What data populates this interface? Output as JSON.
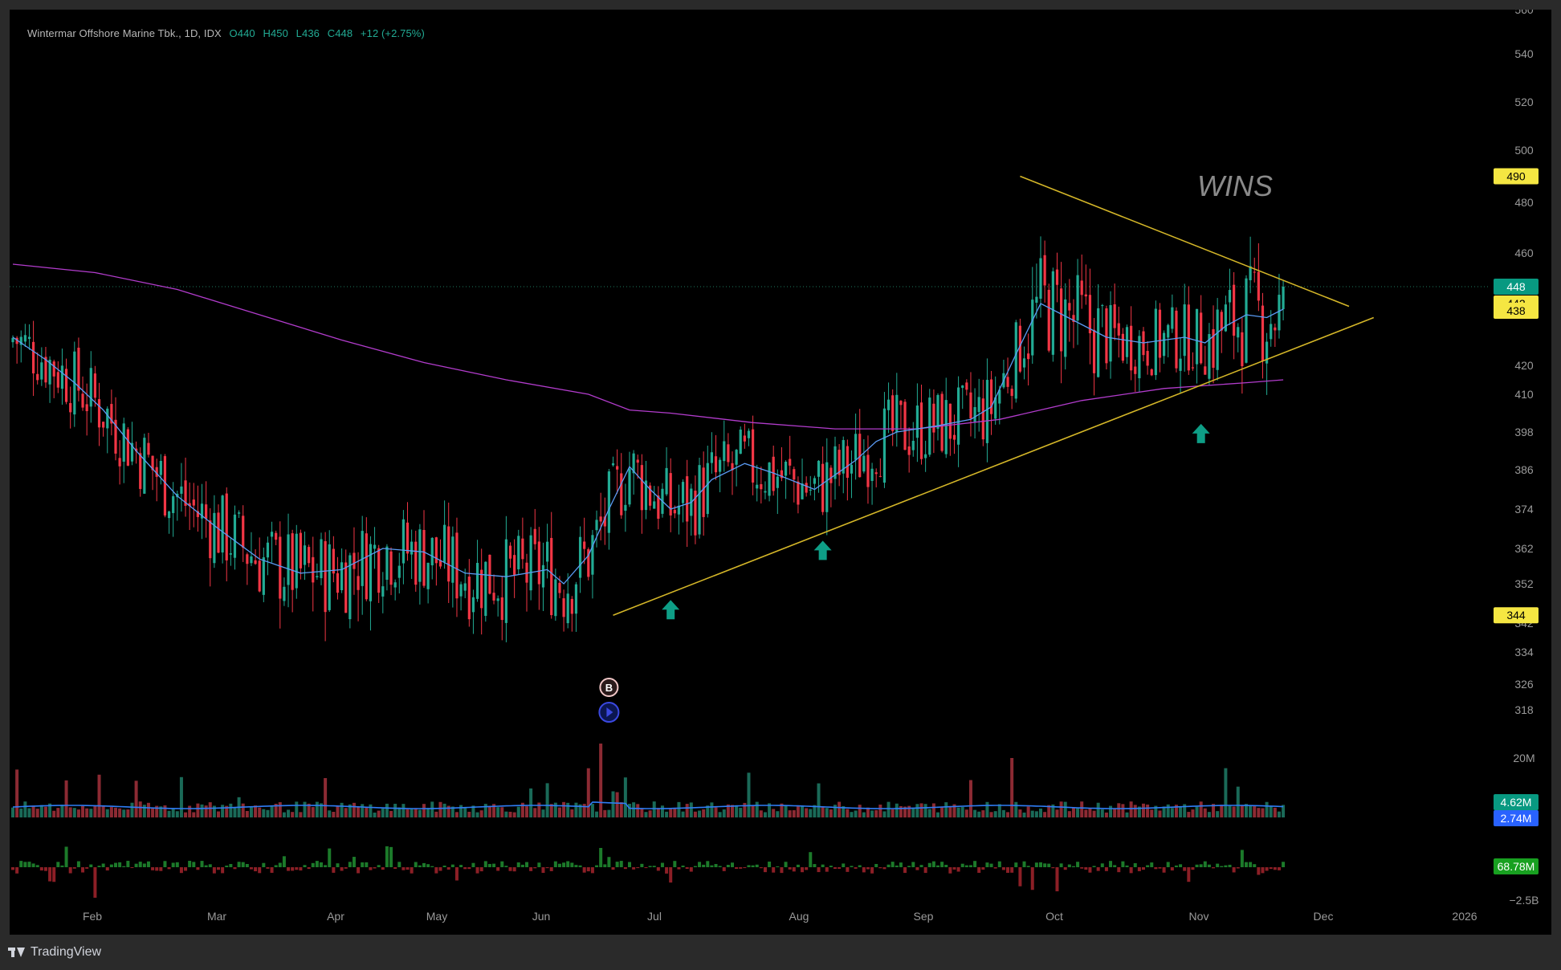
{
  "legend": {
    "symbol": "Wintermar Offshore Marine Tbk., 1D, IDX",
    "open": "O440",
    "high": "H450",
    "low": "L436",
    "close": "C448",
    "change": "+12 (+2.75%)"
  },
  "watermark": "WINS",
  "footer": {
    "brand": "TradingView"
  },
  "colors": {
    "up": "#22ab94",
    "down": "#f23645",
    "ma_fast": "#5b9cf6",
    "ma_slow": "#b23ccc",
    "trendline": "#d4b628",
    "axis_text": "#9a9a9a",
    "highlight": "#f5e642"
  },
  "chart_data": {
    "type": "candlestick",
    "price_axis": {
      "ticks": [
        "560",
        "540",
        "520",
        "500",
        "480",
        "460",
        "420",
        "410",
        "398",
        "386",
        "374",
        "362",
        "352",
        "342",
        "334",
        "326",
        "318"
      ],
      "labels": [
        {
          "text": "490",
          "value": 490,
          "style": "yellow"
        },
        {
          "text": "448",
          "value": 448,
          "style": "green"
        },
        {
          "text": "442",
          "value": 442,
          "style": "yellow"
        },
        {
          "text": "438",
          "value": 438,
          "style": "yellow"
        },
        {
          "text": "344",
          "value": 344,
          "style": "yellow"
        }
      ]
    },
    "time_axis": {
      "ticks": [
        "Feb",
        "Mar",
        "Apr",
        "May",
        "Jun",
        "Jul",
        "Aug",
        "Sep",
        "Oct",
        "Nov",
        "Dec",
        "2026"
      ]
    },
    "last_close": 448,
    "ma_fast_points": [
      [
        0,
        430
      ],
      [
        8,
        422
      ],
      [
        15,
        414
      ],
      [
        22,
        405
      ],
      [
        30,
        392
      ],
      [
        40,
        378
      ],
      [
        50,
        368
      ],
      [
        60,
        359
      ],
      [
        70,
        355
      ],
      [
        80,
        356
      ],
      [
        90,
        362
      ],
      [
        100,
        361
      ],
      [
        110,
        355
      ],
      [
        120,
        354
      ],
      [
        130,
        356
      ],
      [
        134,
        352
      ],
      [
        140,
        360
      ],
      [
        145,
        374
      ],
      [
        150,
        387
      ],
      [
        155,
        380
      ],
      [
        160,
        374
      ],
      [
        165,
        376
      ],
      [
        170,
        383
      ],
      [
        178,
        388
      ],
      [
        185,
        385
      ],
      [
        195,
        380
      ],
      [
        205,
        389
      ],
      [
        210,
        395
      ],
      [
        215,
        398
      ],
      [
        225,
        400
      ],
      [
        233,
        402
      ],
      [
        238,
        406
      ],
      [
        244,
        424
      ],
      [
        250,
        442
      ],
      [
        258,
        436
      ],
      [
        266,
        430
      ],
      [
        275,
        428
      ],
      [
        285,
        430
      ],
      [
        290,
        428
      ],
      [
        295,
        434
      ],
      [
        300,
        438
      ],
      [
        305,
        437
      ],
      [
        309,
        440
      ]
    ],
    "ma_slow_points": [
      [
        0,
        456
      ],
      [
        20,
        453
      ],
      [
        40,
        447
      ],
      [
        60,
        438
      ],
      [
        80,
        429
      ],
      [
        100,
        421
      ],
      [
        120,
        415
      ],
      [
        140,
        410
      ],
      [
        150,
        405
      ],
      [
        160,
        404
      ],
      [
        180,
        401
      ],
      [
        200,
        399
      ],
      [
        220,
        399
      ],
      [
        240,
        402
      ],
      [
        260,
        408
      ],
      [
        280,
        412
      ],
      [
        300,
        414
      ],
      [
        309,
        415
      ]
    ],
    "resistance_line": [
      [
        245,
        490
      ],
      [
        325,
        441
      ]
    ],
    "support_line": [
      [
        146,
        344
      ],
      [
        331,
        437
      ]
    ],
    "arrows": [
      {
        "bar": 160,
        "value": 345
      },
      {
        "bar": 197,
        "value": 361
      },
      {
        "bar": 289,
        "value": 397
      }
    ],
    "markers": [
      {
        "bar": 145,
        "label": "B",
        "value": 325
      }
    ],
    "volume_axis": {
      "ticks": [
        "20M"
      ],
      "labels": [
        {
          "text": "4.62M",
          "style": "green"
        },
        {
          "text": "2.74M",
          "style": "blue"
        }
      ]
    },
    "flow_axis": {
      "ticks": [
        "−2.5B"
      ],
      "labels": [
        {
          "text": "68.78M",
          "style": "green"
        }
      ]
    }
  }
}
